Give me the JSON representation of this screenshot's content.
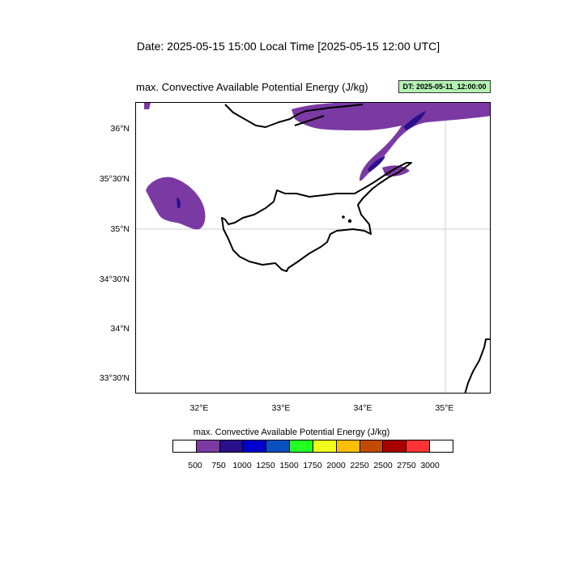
{
  "header": {
    "date_line": "Date: 2025-05-15  15:00 Local Time [2025-05-15  12:00 UTC]",
    "field_title": "max. Convective Available Potential Energy    (J/kg)",
    "dt_badge": "DT: 2025-05-11_12:00:00"
  },
  "map": {
    "lat_labels": [
      "36°N",
      "35°30'N",
      "35°N",
      "34°30'N",
      "34°N",
      "33°30'N"
    ],
    "lon_labels": [
      "32°E",
      "33°E",
      "34°E",
      "35°E"
    ],
    "gridlines": [
      "35°N",
      "35°E"
    ],
    "cape_fill_color": "#7b3aa3",
    "cape_core_color": "#2a0f8a"
  },
  "colorbar": {
    "title": "max. Convective Available Potential Energy  (J/kg)",
    "labels": [
      "500",
      "750",
      "1000",
      "1250",
      "1500",
      "1750",
      "2000",
      "2250",
      "2500",
      "2750",
      "3000"
    ],
    "colors": [
      "#ffffff",
      "#7b3aa3",
      "#2a0f8a",
      "#0000cd",
      "#0a4fc0",
      "#22ff22",
      "#f2ff1a",
      "#ffbf00",
      "#c14c00",
      "#a80000",
      "#ff3333",
      "#ffffff"
    ]
  }
}
